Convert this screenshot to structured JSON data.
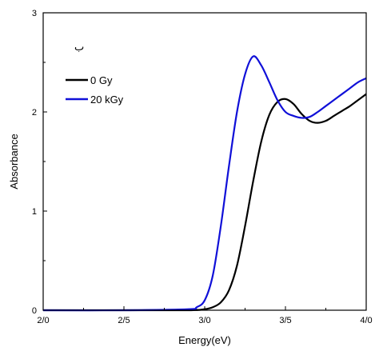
{
  "chart_data": {
    "type": "line",
    "title": "",
    "xlabel": "Energy(eV)",
    "ylabel": "Absorbance",
    "xlim": [
      2.0,
      4.0
    ],
    "ylim": [
      0,
      3
    ],
    "x_ticks": [
      2.0,
      2.5,
      3.0,
      3.5,
      4.0
    ],
    "x_tick_labels": [
      "2/0",
      "2/5",
      "3/0",
      "3/5",
      "4/0"
    ],
    "y_ticks": [
      0,
      1,
      2,
      3
    ],
    "y_tick_labels": [
      "0",
      "1",
      "2",
      "3"
    ],
    "grid": false,
    "legend_position": "top-left",
    "annotation": "ب",
    "series": [
      {
        "name": "0   Gy",
        "color": "#000000",
        "x": [
          2.0,
          2.5,
          2.9,
          3.0,
          3.05,
          3.1,
          3.15,
          3.2,
          3.25,
          3.3,
          3.35,
          3.4,
          3.45,
          3.5,
          3.55,
          3.6,
          3.65,
          3.7,
          3.75,
          3.8,
          3.85,
          3.9,
          3.95,
          4.0
        ],
        "values": [
          0.0,
          0.0,
          0.0,
          0.01,
          0.03,
          0.08,
          0.2,
          0.45,
          0.85,
          1.3,
          1.7,
          1.97,
          2.1,
          2.13,
          2.08,
          1.98,
          1.91,
          1.89,
          1.91,
          1.96,
          2.01,
          2.06,
          2.12,
          2.18
        ]
      },
      {
        "name": "20 kGy",
        "color": "#1010d8",
        "x": [
          2.0,
          2.5,
          2.9,
          2.95,
          3.0,
          3.05,
          3.1,
          3.15,
          3.2,
          3.25,
          3.3,
          3.35,
          3.4,
          3.45,
          3.5,
          3.55,
          3.6,
          3.65,
          3.7,
          3.75,
          3.8,
          3.85,
          3.9,
          3.95,
          4.0
        ],
        "values": [
          0.0,
          0.0,
          0.01,
          0.03,
          0.1,
          0.35,
          0.85,
          1.45,
          2.0,
          2.38,
          2.56,
          2.47,
          2.3,
          2.12,
          2.0,
          1.96,
          1.94,
          1.95,
          2.0,
          2.06,
          2.12,
          2.18,
          2.24,
          2.3,
          2.34
        ]
      }
    ]
  }
}
